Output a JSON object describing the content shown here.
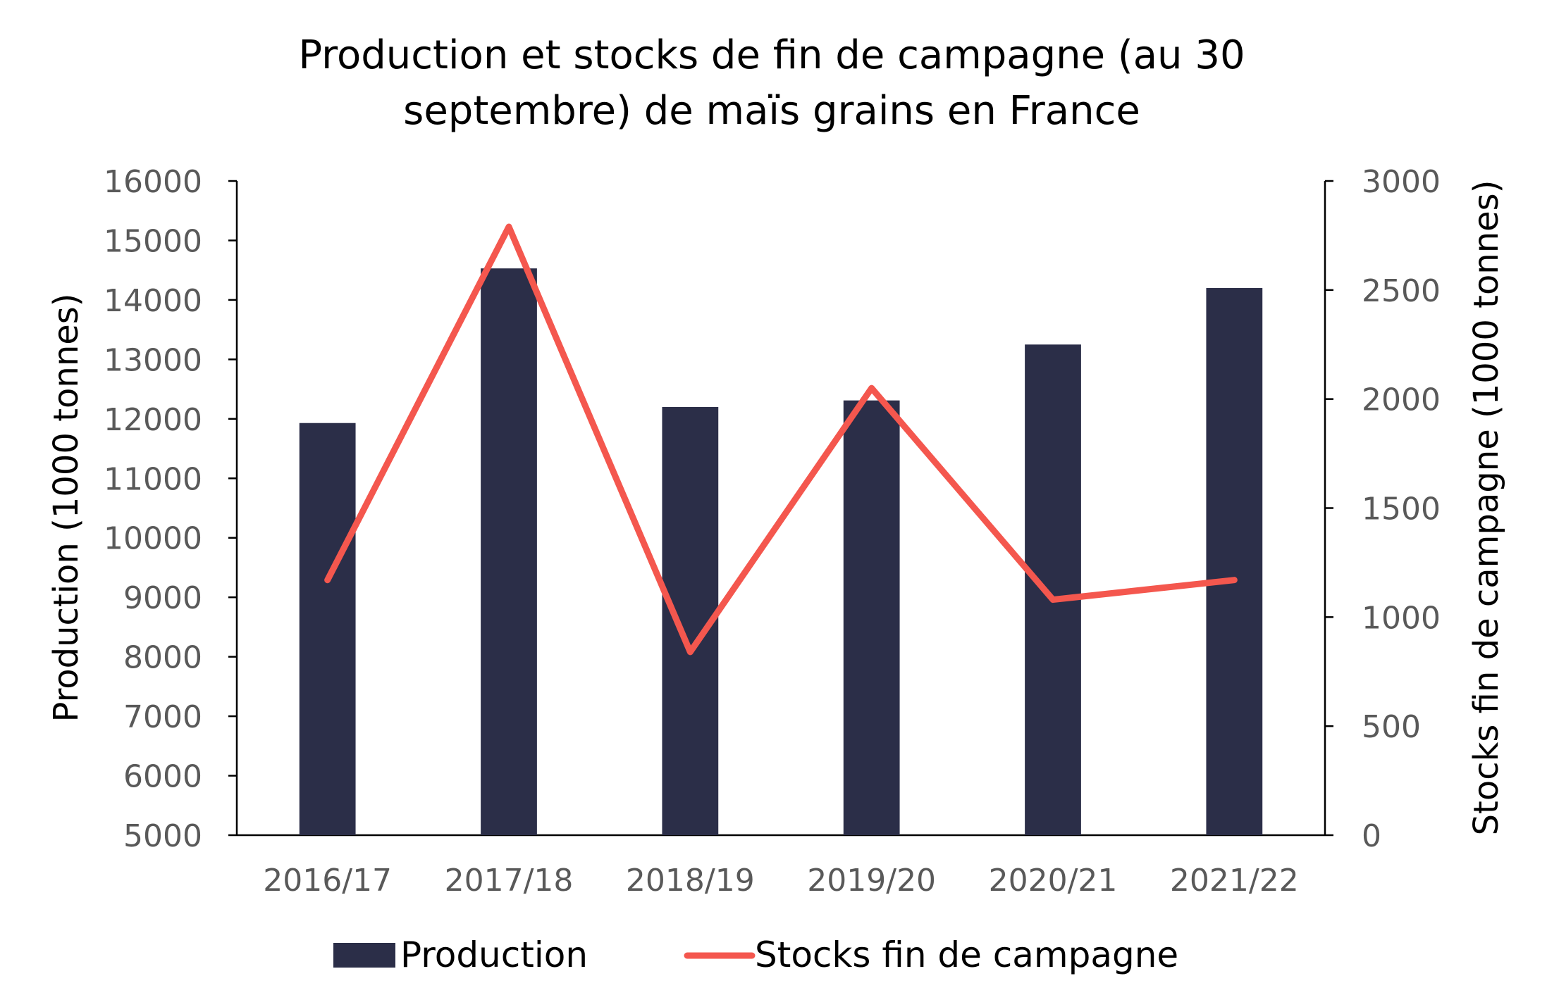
{
  "chart_data": {
    "type": "bar",
    "title_line1": "Production et stocks de fin de campagne (au 30",
    "title_line2": "septembre) de maïs grains en France",
    "categories": [
      "2016/17",
      "2017/18",
      "2018/19",
      "2019/20",
      "2020/21",
      "2021/22"
    ],
    "series": [
      {
        "name": "Production",
        "type": "bar",
        "axis": "left",
        "color": "#2b2e48",
        "values": [
          11930,
          14530,
          12200,
          12310,
          13250,
          14200
        ]
      },
      {
        "name": "Stocks fin de campagne",
        "type": "line",
        "axis": "right",
        "color": "#f4574e",
        "values": [
          1170,
          2790,
          840,
          2050,
          1080,
          1170
        ]
      }
    ],
    "y_left": {
      "label": "Production (1000 tonnes)",
      "min": 5000,
      "max": 16000,
      "ticks": [
        "16000",
        "15000",
        "14000",
        "13000",
        "12000",
        "11000",
        "10000",
        "9000",
        "8000",
        "7000",
        "6000",
        "5000"
      ]
    },
    "y_right": {
      "label": "Stocks  fin de campagne (1000 tonnes)",
      "min": 0,
      "max": 3000,
      "ticks": [
        "3000",
        "2500",
        "2000",
        "1500",
        "1000",
        "500",
        "0"
      ]
    },
    "legend": {
      "placement": "bottom",
      "production": "Production",
      "stocks": "Stocks fin de campagne"
    },
    "grid": false
  }
}
